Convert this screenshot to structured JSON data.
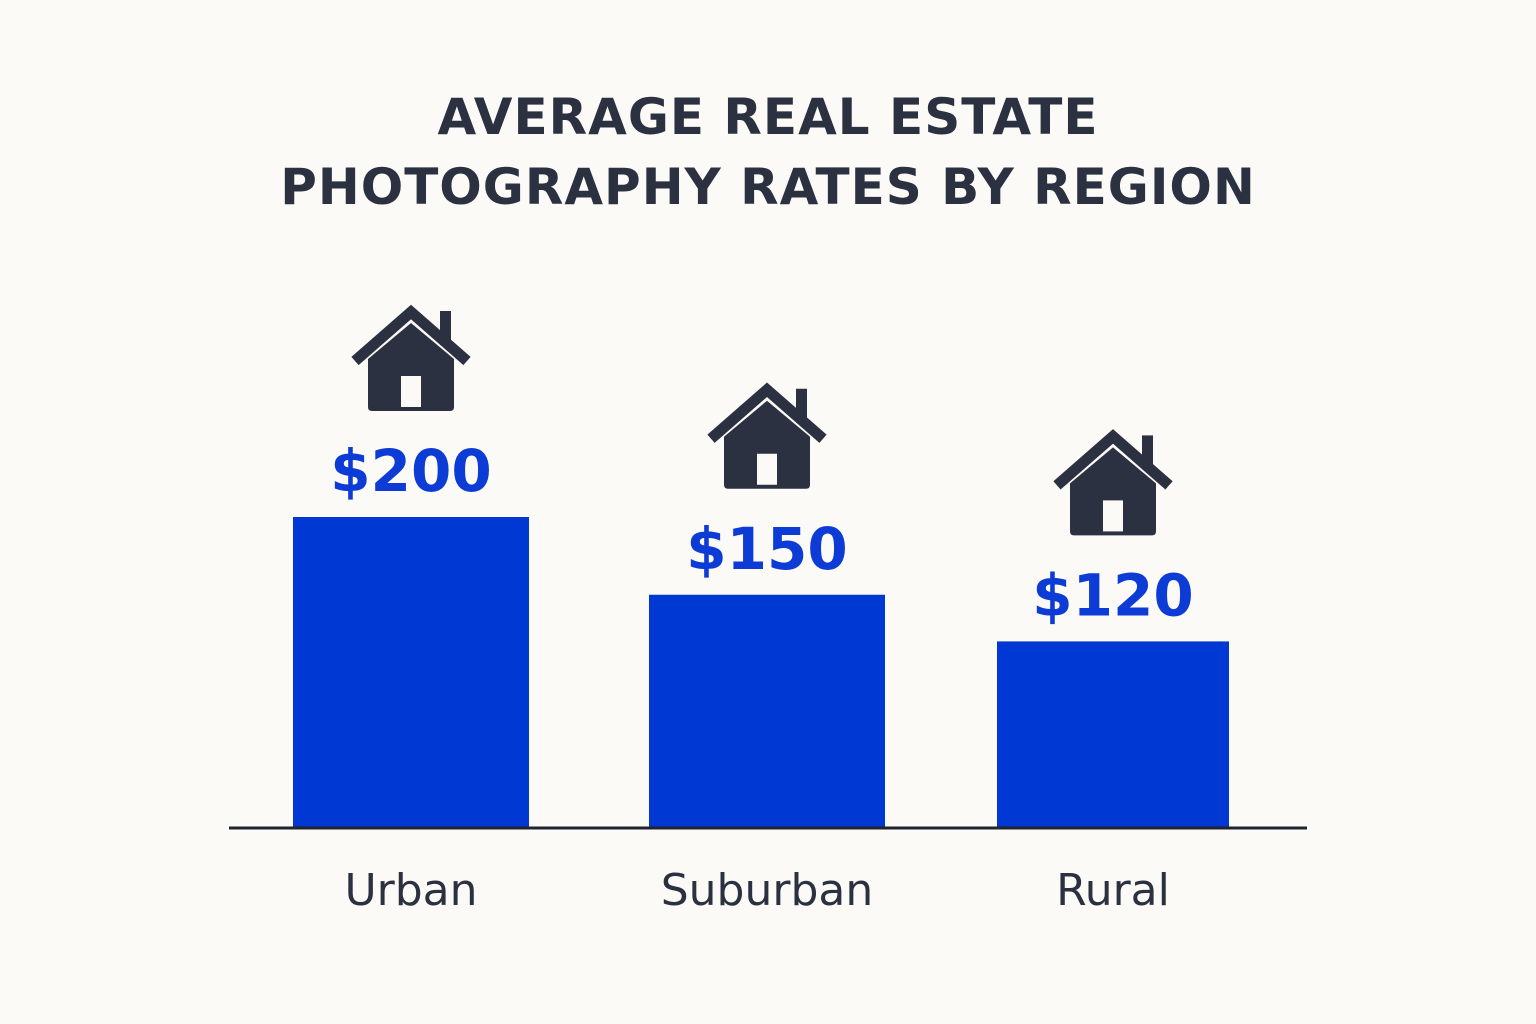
{
  "chart_data": {
    "type": "bar",
    "title_lines": [
      "AVERAGE REAL ESTATE",
      "PHOTOGRAPHY RATES BY REGION"
    ],
    "categories": [
      "Urban",
      "Suburban",
      "Rural"
    ],
    "values": [
      200,
      150,
      120
    ],
    "value_labels": [
      "$200",
      "$150",
      "$120"
    ],
    "xlabel": "",
    "ylabel": "",
    "ylim": [
      0,
      200
    ],
    "grid": false,
    "legend": "none",
    "bar_icon": "house-icon"
  },
  "colors": {
    "background": "#fbfaf6",
    "bar": "#0038d3",
    "value_label": "#0d3bd6",
    "text": "#2b3140",
    "icon": "#2b3140",
    "axis": "#1f2430"
  }
}
